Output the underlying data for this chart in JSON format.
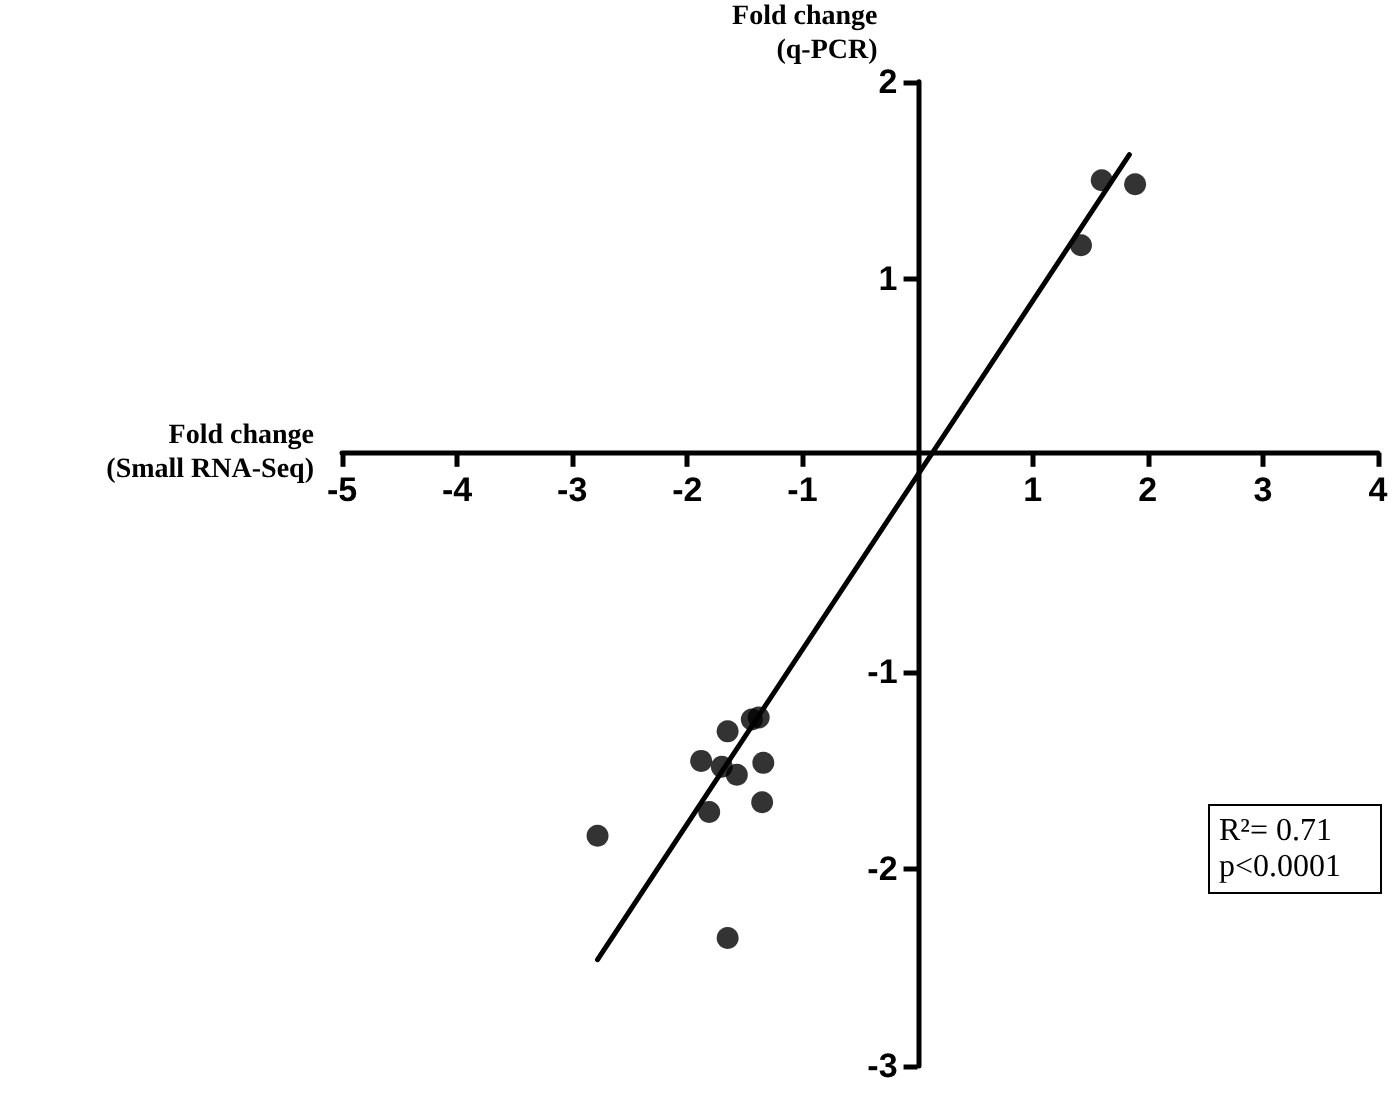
{
  "chart_data": {
    "type": "scatter",
    "xlabel": "Fold change\n(Small RNA-Seq)",
    "ylabel": "Fold change\n(q-PCR)",
    "xlim": [
      -5,
      4
    ],
    "xticks": [
      -5,
      -4,
      -3,
      -2,
      -1,
      1,
      2,
      3,
      4
    ],
    "ylim": [
      -3,
      2
    ],
    "yticks": [
      -3,
      -2,
      -1,
      1,
      2
    ],
    "grid": false,
    "marker": "circle",
    "annotations": [
      "R²= 0.71",
      "p<0.0001"
    ],
    "series": [
      {
        "color": "#000000",
        "x": [
          1.6,
          1.89,
          1.42,
          -1.38,
          -1.44,
          -1.65,
          -1.88,
          -1.7,
          -1.57,
          -1.34,
          -1.35,
          -1.81,
          -2.78,
          -1.65
        ],
        "values": [
          1.5,
          1.48,
          1.17,
          -1.23,
          -1.24,
          -1.3,
          -1.45,
          -1.48,
          -1.52,
          -1.46,
          -1.66,
          -1.71,
          -1.83,
          -2.35
        ]
      },
      {
        "type": "line",
        "color": "#000000",
        "x": [
          -2.78,
          1.84
        ],
        "values": [
          -2.46,
          1.63
        ],
        "line_style": "solid",
        "marker": "none"
      }
    ]
  }
}
